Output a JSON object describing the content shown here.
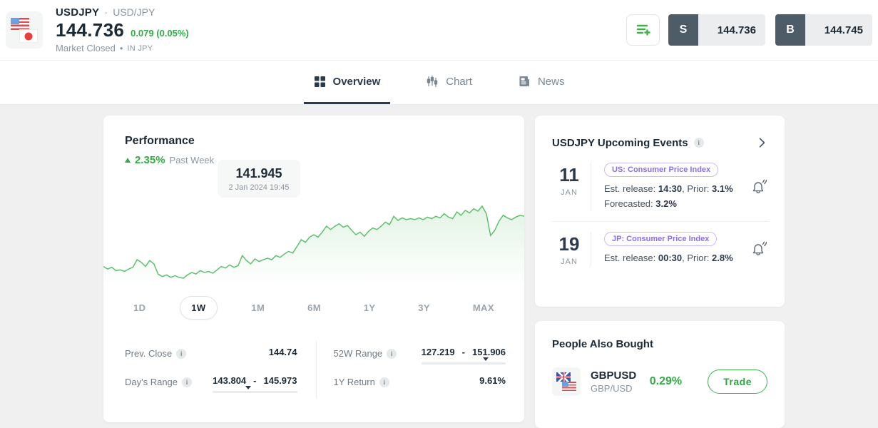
{
  "header": {
    "symbol": "USDJPY",
    "sep": "·",
    "pair": "USD/JPY",
    "price": "144.736",
    "change": "0.079 (0.05%)",
    "market_status": "Market Closed",
    "bullet": "•",
    "currency_note": "IN JPY",
    "sell": {
      "label": "S",
      "price": "144.736"
    },
    "buy": {
      "label": "B",
      "price": "144.745"
    }
  },
  "tabs": [
    {
      "label": "Overview",
      "active": true
    },
    {
      "label": "Chart",
      "active": false
    },
    {
      "label": "News",
      "active": false
    }
  ],
  "performance": {
    "title": "Performance",
    "change_pct": "2.35%",
    "period": "Past Week",
    "tooltip": {
      "value": "141.945",
      "datetime": "2 Jan 2024 19:45"
    },
    "timeframes": [
      "1D",
      "1W",
      "1M",
      "6M",
      "1Y",
      "3Y",
      "MAX"
    ],
    "selected_timeframe": "1W",
    "range_separator": "-",
    "stats": {
      "prev_close": {
        "label": "Prev. Close",
        "value": "144.74"
      },
      "week52_range": {
        "label": "52W Range",
        "low": "127.219",
        "high": "151.906",
        "marker_pct": 76
      },
      "days_range": {
        "label": "Day's Range",
        "low": "143.804",
        "high": "145.973",
        "marker_pct": 42
      },
      "year1_return": {
        "label": "1Y Return",
        "value": "9.61%"
      }
    }
  },
  "chart_data": {
    "type": "area",
    "title": "USDJPY price sparkline (Past Week view)",
    "xlabel": "",
    "ylabel": "",
    "grid": false,
    "legend": false,
    "axes_shown": false,
    "line_color": "#5fc06c",
    "fill_top_color": "rgba(95,192,108,0.16)",
    "fill_bottom_color": "rgba(95,192,108,0)",
    "highlighted_point": {
      "value": 141.945,
      "datetime": "2 Jan 2024 19:45"
    },
    "y_range_estimate": [
      141.3,
      144.95
    ],
    "values": [
      141.9,
      141.77,
      141.86,
      141.69,
      141.73,
      141.65,
      141.77,
      141.86,
      142.24,
      142.11,
      141.9,
      142.2,
      142.03,
      141.52,
      141.39,
      141.48,
      141.35,
      141.44,
      141.35,
      141.31,
      141.48,
      141.6,
      141.52,
      141.69,
      141.6,
      141.65,
      141.56,
      141.73,
      141.9,
      141.82,
      141.98,
      141.86,
      141.94,
      142.45,
      142.2,
      142.03,
      142.28,
      142.15,
      142.24,
      142.32,
      142.24,
      142.45,
      142.36,
      142.53,
      142.66,
      142.58,
      142.91,
      143.25,
      143.12,
      143.38,
      143.5,
      143.38,
      143.63,
      143.93,
      143.76,
      143.93,
      144.05,
      143.88,
      143.97,
      143.72,
      143.5,
      143.63,
      143.42,
      143.67,
      143.84,
      143.76,
      143.93,
      144.14,
      144.01,
      144.43,
      144.22,
      144.35,
      144.26,
      144.31,
      144.26,
      144.35,
      144.26,
      144.39,
      144.31,
      144.43,
      144.35,
      144.56,
      144.39,
      144.31,
      144.65,
      144.48,
      144.73,
      144.6,
      144.81,
      144.69,
      144.94,
      144.56,
      143.46,
      143.72,
      144.18,
      144.48,
      144.35,
      144.26,
      144.39,
      144.48,
      144.43
    ]
  },
  "events": {
    "title": "USDJPY Upcoming Events",
    "items": [
      {
        "day": "11",
        "month": "JAN",
        "badge": "US: Consumer Price Index",
        "est_label": "Est. release: ",
        "est_time": "14:30",
        "prior_label": ", Prior: ",
        "prior_value": "3.1%",
        "forecast_label": "Forecasted: ",
        "forecast_value": "3.2%"
      },
      {
        "day": "19",
        "month": "JAN",
        "badge": "JP: Consumer Price Index",
        "est_label": "Est. release: ",
        "est_time": "00:30",
        "prior_label": ", Prior: ",
        "prior_value": "2.8%",
        "forecast_label": "",
        "forecast_value": ""
      }
    ]
  },
  "people_also_bought": {
    "title": "People Also Bought",
    "items": [
      {
        "symbol": "GBPUSD",
        "pair": "GBP/USD",
        "change": "0.29%",
        "action_label": "Trade"
      }
    ]
  },
  "colors": {
    "positive": "#2fad44",
    "button_slate": "#4e5c68",
    "badge_purple": "#8d6cf0"
  }
}
